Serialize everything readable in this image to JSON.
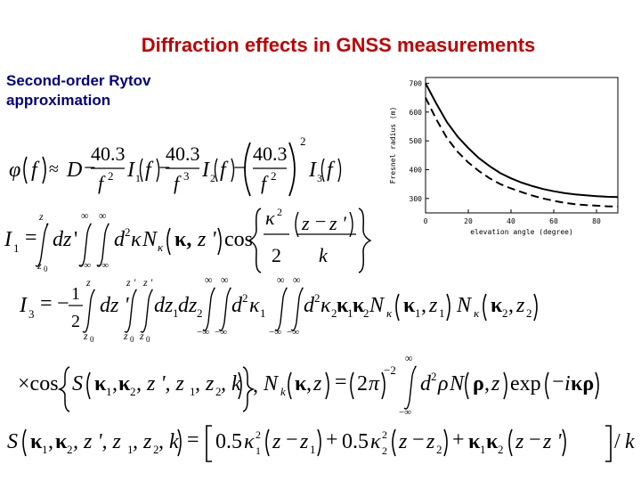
{
  "header": {
    "title": "Diffraction effects in GNSS measurements",
    "subtitle": "Second-order Rytov approximation"
  },
  "chart_data": {
    "type": "line",
    "xlabel": "elevation angle (degree)",
    "ylabel": "Fresnel radius (m)",
    "xlim": [
      0,
      90
    ],
    "ylim": [
      250,
      720
    ],
    "x_ticks": [
      "0",
      "20",
      "40",
      "60",
      "80"
    ],
    "y_ticks": [
      "300",
      "400",
      "500",
      "600",
      "700"
    ],
    "grid": false,
    "series": [
      {
        "style": "solid",
        "x": [
          0,
          5,
          10,
          15,
          20,
          25,
          30,
          35,
          40,
          45,
          50,
          55,
          60,
          65,
          70,
          75,
          80,
          85,
          90
        ],
        "y": [
          700,
          630,
          565,
          515,
          475,
          440,
          412,
          388,
          370,
          355,
          343,
          333,
          325,
          319,
          314,
          311,
          308,
          306,
          305
        ]
      },
      {
        "style": "dashed",
        "x": [
          0,
          5,
          10,
          15,
          20,
          25,
          30,
          35,
          40,
          45,
          50,
          55,
          60,
          65,
          70,
          75,
          80,
          85,
          90
        ],
        "y": [
          650,
          575,
          510,
          462,
          425,
          395,
          370,
          350,
          335,
          322,
          310,
          300,
          292,
          285,
          280,
          277,
          275,
          273,
          272
        ]
      }
    ]
  },
  "equations": {
    "phi": {
      "phi": "φ",
      "f": "f",
      "approx": "≈",
      "D": "D",
      "c1": "40.3",
      "c2": "40.3",
      "c3": "40.3",
      "p2": "2",
      "p3": "3",
      "I1": "I",
      "I2": "I",
      "I3": "I",
      "s1": "1",
      "s2": "2",
      "s3": "3"
    },
    "I1": {
      "lhs": "I",
      "sub": "1",
      "upper_z": "z",
      "lower_z0": "z",
      "inf": "∞",
      "minf": "−∞",
      "d2": "d",
      "kappa": "κ",
      "N": "N",
      "cos": "cos",
      "num": "κ",
      "sq": "2",
      "two": "2",
      "z": "z",
      "zp": "z '",
      "k": "k"
    },
    "I3": {
      "lhs": "I",
      "sub": "3",
      "minus": "−",
      "one": "1",
      "two": "2",
      "z": "z",
      "zp": "z '",
      "z0": "z",
      "kappa1": "κ",
      "kappa2": "κ",
      "N": "N"
    },
    "S": {
      "label": "S",
      "coef": "0.5",
      "k": "k"
    }
  }
}
